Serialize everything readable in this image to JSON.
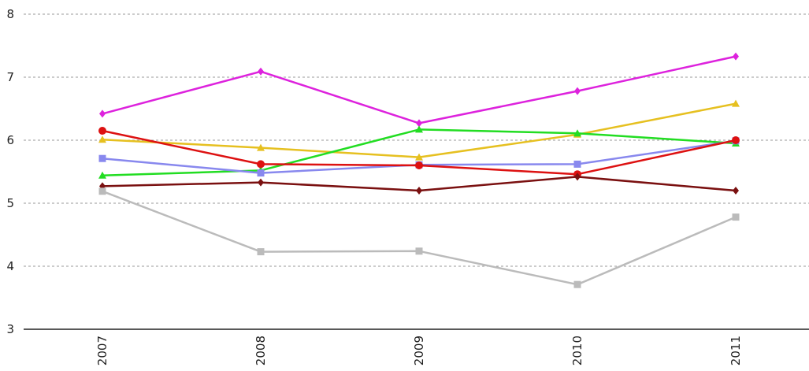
{
  "chart_data": {
    "type": "line",
    "categories": [
      "2007",
      "2008",
      "2009",
      "2010",
      "2011"
    ],
    "ylim": [
      3,
      8
    ],
    "y_ticks": [
      "3",
      "4",
      "5",
      "6",
      "7",
      "8"
    ],
    "grid": true,
    "series": [
      {
        "color": "#dd22dd",
        "marker": "diamond",
        "values": [
          6.42,
          7.09,
          6.27,
          6.78,
          7.33
        ]
      },
      {
        "color": "#e6c020",
        "marker": "triangle",
        "values": [
          6.01,
          5.88,
          5.73,
          6.09,
          6.58
        ]
      },
      {
        "color": "#22dd22",
        "marker": "triangle",
        "values": [
          5.44,
          5.52,
          6.17,
          6.11,
          5.95
        ]
      },
      {
        "color": "#8888ee",
        "marker": "square",
        "values": [
          5.71,
          5.48,
          5.61,
          5.62,
          5.99
        ]
      },
      {
        "color": "#dd1111",
        "marker": "circle",
        "values": [
          6.15,
          5.62,
          5.6,
          5.46,
          6.0
        ]
      },
      {
        "color": "#7a1010",
        "marker": "diamond",
        "values": [
          5.27,
          5.33,
          5.2,
          5.42,
          5.2
        ]
      },
      {
        "color": "#bbbbbb",
        "marker": "square",
        "values": [
          5.19,
          4.23,
          4.24,
          3.71,
          4.78
        ]
      }
    ]
  }
}
